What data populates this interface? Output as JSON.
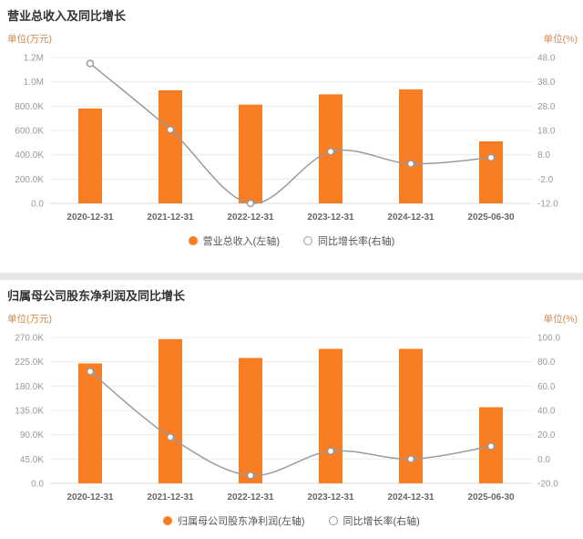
{
  "colors": {
    "bar": "#f97e23",
    "line": "#9b9b9b",
    "unit_text": "#d0884e",
    "grid": "#ececec",
    "axis_base": "#dcdcdc",
    "tick_text": "#999999",
    "category_text": "#666666"
  },
  "chart_data": [
    {
      "type": "bar",
      "title": "营业总收入及同比增长",
      "unit_left": "单位(万元)",
      "unit_right": "单位(%)",
      "categories": [
        "2020-12-31",
        "2021-12-31",
        "2022-12-31",
        "2023-12-31",
        "2024-12-31",
        "2025-06-30"
      ],
      "series": [
        {
          "name": "营业总收入(左轴)",
          "type": "bar",
          "axis": "left",
          "values": [
            780000,
            930000,
            812000,
            897000,
            937000,
            510000
          ]
        },
        {
          "name": "同比增长率(右轴)",
          "type": "line",
          "axis": "right",
          "values": [
            45.5,
            18.3,
            -12.0,
            9.3,
            4.3,
            6.8
          ]
        }
      ],
      "left_axis": {
        "ylim": [
          0,
          1200000
        ],
        "ticks": [
          0,
          200000,
          400000,
          600000,
          800000,
          1000000,
          1200000
        ],
        "labels": [
          "0.0",
          "200.0K",
          "400.0K",
          "600.0K",
          "800.0K",
          "1.0M",
          "1.2M"
        ]
      },
      "right_axis": {
        "ylim": [
          -12,
          48
        ],
        "ticks": [
          -12,
          -2,
          8,
          18,
          28,
          38,
          48
        ],
        "labels": [
          "-12.0",
          "-2.0",
          "8.0",
          "18.0",
          "28.0",
          "38.0",
          "48.0"
        ]
      },
      "legend_position": "bottom",
      "grid": true
    },
    {
      "type": "bar",
      "title": "归属母公司股东净利润及同比增长",
      "unit_left": "单位(万元)",
      "unit_right": "单位(%)",
      "categories": [
        "2020-12-31",
        "2021-12-31",
        "2022-12-31",
        "2023-12-31",
        "2024-12-31",
        "2025-06-30"
      ],
      "series": [
        {
          "name": "归属母公司股东净利润(左轴)",
          "type": "bar",
          "axis": "left",
          "values": [
            222000,
            267000,
            232000,
            249000,
            249000,
            141000
          ]
        },
        {
          "name": "同比增长率(右轴)",
          "type": "line",
          "axis": "right",
          "values": [
            72.0,
            18.0,
            -13.5,
            6.5,
            0.0,
            10.5
          ]
        }
      ],
      "left_axis": {
        "ylim": [
          0,
          270000
        ],
        "ticks": [
          0,
          45000,
          90000,
          135000,
          180000,
          225000,
          270000
        ],
        "labels": [
          "0.0",
          "45.0K",
          "90.0K",
          "135.0K",
          "180.0K",
          "225.0K",
          "270.0K"
        ]
      },
      "right_axis": {
        "ylim": [
          -20,
          100
        ],
        "ticks": [
          -20,
          0,
          20,
          40,
          60,
          80,
          100
        ],
        "labels": [
          "-20.0",
          "0.0",
          "20.0",
          "40.0",
          "60.0",
          "80.0",
          "100.0"
        ]
      },
      "legend_position": "bottom",
      "grid": true
    }
  ]
}
